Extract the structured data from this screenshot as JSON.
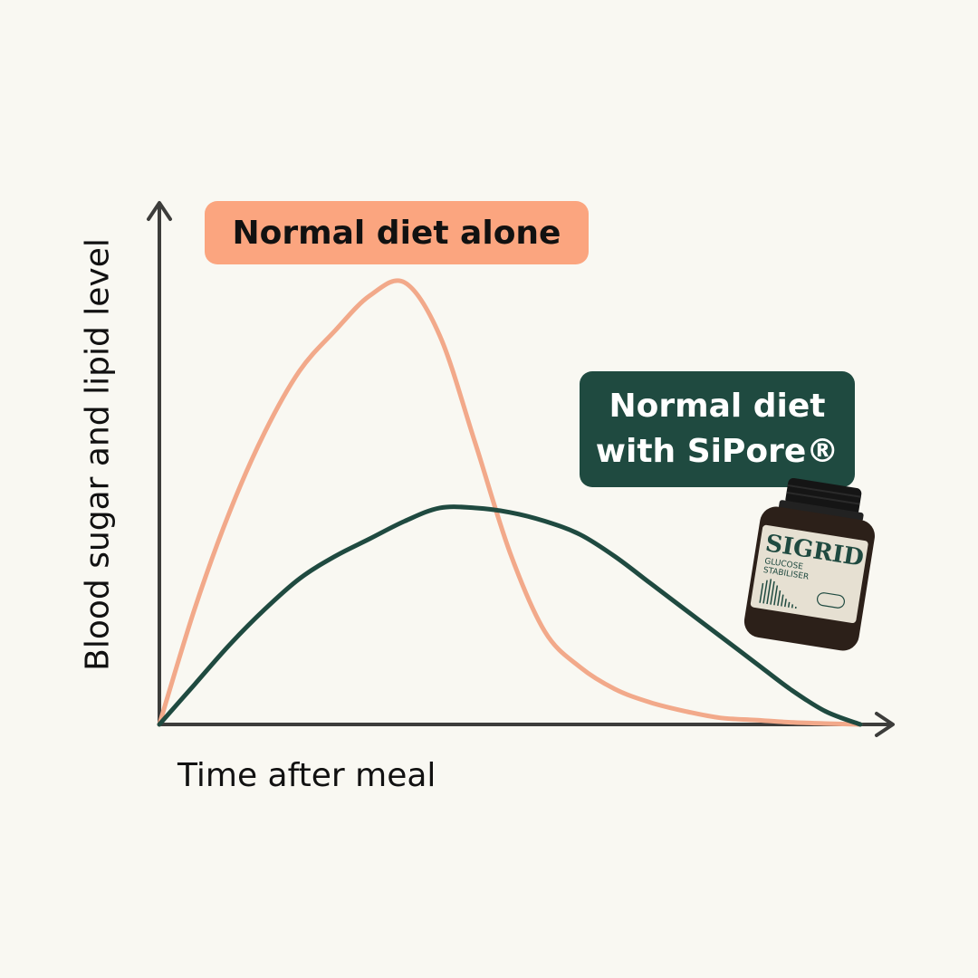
{
  "chart_data": {
    "type": "line",
    "title": "",
    "xlabel": "Time after meal",
    "ylabel": "Blood sugar and lipid level",
    "xlim": [
      0,
      10
    ],
    "ylim": [
      0,
      10
    ],
    "grid": false,
    "legend": "inline",
    "x": [
      0,
      0.5,
      1,
      1.5,
      2,
      2.5,
      3,
      3.5,
      4,
      4.5,
      5,
      5.5,
      6,
      6.5,
      7,
      7.5,
      8,
      8.5,
      9,
      9.5,
      10
    ],
    "series": [
      {
        "name": "Normal diet alone",
        "color": "#f2a98a",
        "values": [
          0,
          2.6,
          4.8,
          6.6,
          8.0,
          8.9,
          9.7,
          10.0,
          8.8,
          6.4,
          3.9,
          2.1,
          1.3,
          0.8,
          0.5,
          0.3,
          0.15,
          0.1,
          0.05,
          0.02,
          0
        ]
      },
      {
        "name": "Normal diet\nwith SiPore®",
        "color": "#1f4a40",
        "values": [
          0,
          0.9,
          1.8,
          2.6,
          3.3,
          3.8,
          4.2,
          4.6,
          4.9,
          4.9,
          4.8,
          4.6,
          4.3,
          3.8,
          3.2,
          2.6,
          2.0,
          1.4,
          0.8,
          0.3,
          0
        ]
      }
    ]
  },
  "product": {
    "icon": "supplement-bottle-icon",
    "brand": "SIGRID",
    "name_line1": "GLUCOSE",
    "name_line2": "STABILISER"
  }
}
